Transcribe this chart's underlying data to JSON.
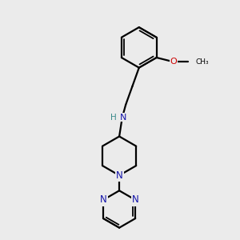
{
  "background_color": "#ebebeb",
  "bond_color": "#000000",
  "N_color": "#1414aa",
  "O_color": "#cc0000",
  "NH_H_color": "#3a8a8a",
  "figsize": [
    3.0,
    3.0
  ],
  "dpi": 100,
  "xlim": [
    0,
    10
  ],
  "ylim": [
    0,
    10
  ],
  "lw": 1.6,
  "lw_inner": 1.3
}
